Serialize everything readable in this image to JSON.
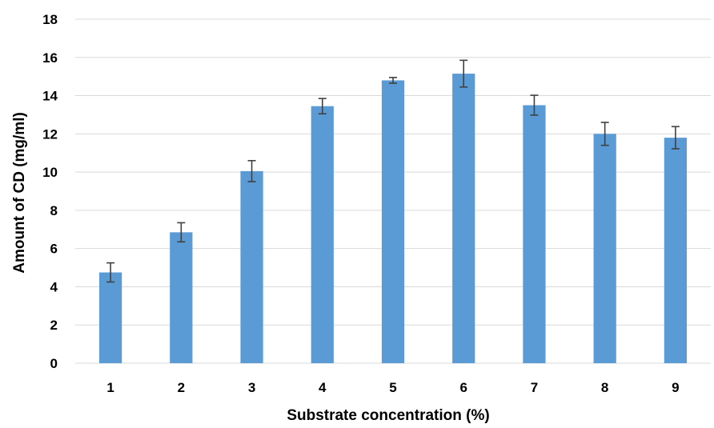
{
  "chart_data": {
    "type": "bar",
    "title": "",
    "xlabel": "Substrate concentration (%)",
    "ylabel": "Amount of CD (mg/ml)",
    "categories": [
      "1",
      "2",
      "3",
      "4",
      "5",
      "6",
      "7",
      "8",
      "9"
    ],
    "values": [
      4.75,
      6.85,
      10.05,
      13.45,
      14.8,
      15.15,
      13.5,
      12.0,
      11.8
    ],
    "error": [
      0.5,
      0.5,
      0.55,
      0.4,
      0.15,
      0.7,
      0.52,
      0.6,
      0.58
    ],
    "ylim": [
      0,
      18
    ],
    "yticks": [
      "0",
      "2",
      "4",
      "6",
      "8",
      "10",
      "12",
      "14",
      "16",
      "18"
    ],
    "grid": true,
    "legend": "none",
    "colors": {
      "bar": "#5b9bd5",
      "grid": "#d9d9d9",
      "error_bar": "#404040",
      "axis_line": "#d9d9d9"
    }
  }
}
